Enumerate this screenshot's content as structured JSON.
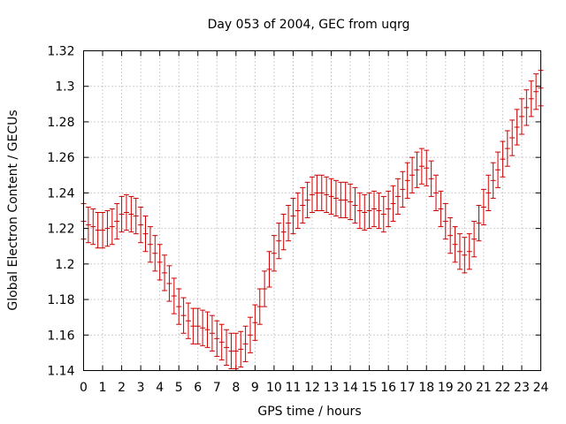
{
  "chart_data": {
    "type": "scatter",
    "title": "Day 053 of 2004, GEC from uqrg",
    "xlabel": "GPS time / hours",
    "ylabel": "Global Electron Content / GECUs",
    "xlim": [
      0,
      24
    ],
    "ylim": [
      1.14,
      1.32
    ],
    "xticks": [
      0,
      1,
      2,
      3,
      4,
      5,
      6,
      7,
      8,
      9,
      10,
      11,
      12,
      13,
      14,
      15,
      16,
      17,
      18,
      19,
      20,
      21,
      22,
      23,
      24
    ],
    "yticks": [
      1.14,
      1.16,
      1.18,
      1.2,
      1.22,
      1.24,
      1.26,
      1.28,
      1.3,
      1.32
    ],
    "ytick_labels": [
      "1.14",
      "1.16",
      "1.18",
      "1.2",
      "1.22",
      "1.24",
      "1.26",
      "1.28",
      "1.3",
      "1.32"
    ],
    "grid": true,
    "series_color": "#cc0000",
    "error": 0.01,
    "x": [
      0,
      0.25,
      0.5,
      0.75,
      1,
      1.25,
      1.5,
      1.75,
      2,
      2.25,
      2.5,
      2.75,
      3,
      3.25,
      3.5,
      3.75,
      4,
      4.25,
      4.5,
      4.75,
      5,
      5.25,
      5.5,
      5.75,
      6,
      6.25,
      6.5,
      6.75,
      7,
      7.25,
      7.5,
      7.75,
      8,
      8.25,
      8.5,
      8.75,
      9,
      9.25,
      9.5,
      9.75,
      10,
      10.25,
      10.5,
      10.75,
      11,
      11.25,
      11.5,
      11.75,
      12,
      12.25,
      12.5,
      12.75,
      13,
      13.25,
      13.5,
      13.75,
      14,
      14.25,
      14.5,
      14.75,
      15,
      15.25,
      15.5,
      15.75,
      16,
      16.25,
      16.5,
      16.75,
      17,
      17.25,
      17.5,
      17.75,
      18,
      18.25,
      18.5,
      18.75,
      19,
      19.25,
      19.5,
      19.75,
      20,
      20.25,
      20.5,
      20.75,
      21,
      21.25,
      21.5,
      21.75,
      22,
      22.25,
      22.5,
      22.75,
      23,
      23.25,
      23.5,
      23.75,
      24
    ],
    "y": [
      1.224,
      1.222,
      1.221,
      1.219,
      1.219,
      1.22,
      1.221,
      1.224,
      1.228,
      1.229,
      1.228,
      1.227,
      1.222,
      1.217,
      1.211,
      1.206,
      1.201,
      1.195,
      1.189,
      1.182,
      1.176,
      1.171,
      1.168,
      1.165,
      1.165,
      1.164,
      1.163,
      1.161,
      1.158,
      1.156,
      1.153,
      1.151,
      1.151,
      1.152,
      1.155,
      1.16,
      1.167,
      1.176,
      1.186,
      1.197,
      1.206,
      1.213,
      1.218,
      1.223,
      1.227,
      1.23,
      1.233,
      1.236,
      1.239,
      1.24,
      1.24,
      1.239,
      1.238,
      1.237,
      1.236,
      1.236,
      1.235,
      1.233,
      1.23,
      1.229,
      1.23,
      1.231,
      1.23,
      1.228,
      1.231,
      1.234,
      1.238,
      1.242,
      1.247,
      1.25,
      1.253,
      1.255,
      1.254,
      1.248,
      1.24,
      1.231,
      1.224,
      1.216,
      1.211,
      1.207,
      1.205,
      1.207,
      1.214,
      1.223,
      1.232,
      1.24,
      1.247,
      1.253,
      1.259,
      1.265,
      1.271,
      1.277,
      1.283,
      1.288,
      1.293,
      1.297,
      1.299
    ]
  }
}
